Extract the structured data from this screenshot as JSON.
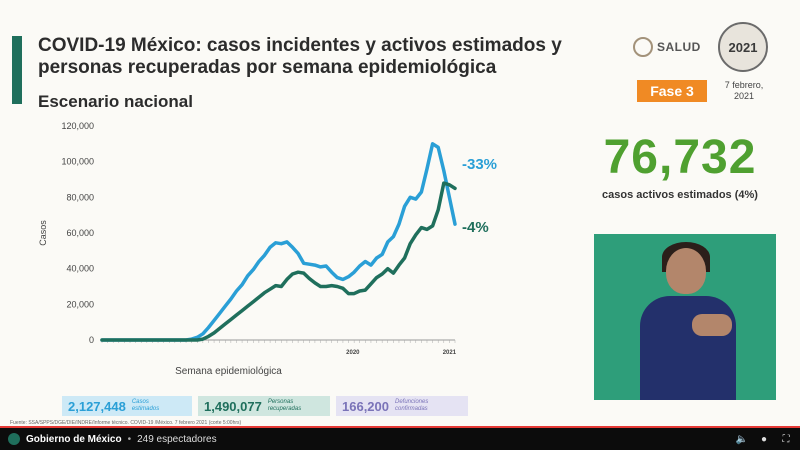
{
  "slide": {
    "title": "COVID-19 México: casos incidentes y activos estimados y personas recuperadas por semana epidemiológica",
    "subtitle": "Escenario nacional",
    "logo_salud": "SALUD",
    "logo_year": "2021",
    "fase": "Fase 3",
    "fecha": "7 febrero, 2021",
    "big_number": "76,732",
    "big_caption": "casos activos estimados (4%)",
    "pct_blue": "-33%",
    "pct_green": "-4%",
    "summary": [
      {
        "value": "2,127,448",
        "label": "Casos estimados"
      },
      {
        "value": "1,490,077",
        "label": "Personas recuperadas"
      },
      {
        "value": "166,200",
        "label": "Defunciones confirmadas"
      }
    ],
    "source": "Fuente: SSA/SPPS/DGE/DIE/INDRE/Informe técnico. COVID-19 /México. 7 febrero 2021 (corte 5:00hrs)"
  },
  "player": {
    "channel": "Gobierno de México",
    "separator": "•",
    "viewers": "249 espectadores",
    "icons": [
      "volume-icon",
      "location-icon",
      "fullscreen-icon"
    ],
    "progress": 1.0
  },
  "chart_data": {
    "type": "line",
    "xlabel": "Semana epidemiológica",
    "ylabel": "Casos",
    "x_ticks": [
      "2020",
      "2021"
    ],
    "y_ticks": [
      "0",
      "20,000",
      "40,000",
      "60,000",
      "80,000",
      "100,000",
      "120,000"
    ],
    "ylim": [
      0,
      120000
    ],
    "series": [
      {
        "color": "#2a9fd6",
        "values": [
          0,
          0,
          0,
          0,
          0,
          0,
          0,
          0,
          0,
          0,
          0,
          0,
          0,
          0,
          0,
          0,
          500,
          1500,
          3500,
          7000,
          11000,
          15000,
          19000,
          23000,
          27500,
          31000,
          36000,
          39500,
          44000,
          47500,
          52000,
          54500,
          54000,
          55000,
          52000,
          48500,
          43000,
          42500,
          42000,
          41000,
          41500,
          38000,
          35000,
          34000,
          35500,
          38000,
          41500,
          44000,
          42000,
          46000,
          48000,
          55000,
          58000,
          65000,
          75000,
          80000,
          79000,
          83000,
          96000,
          110000,
          108000,
          95000,
          80000,
          65000
        ]
      },
      {
        "color": "#1f6f5c",
        "values": [
          0,
          0,
          0,
          0,
          0,
          0,
          0,
          0,
          0,
          0,
          0,
          0,
          0,
          0,
          0,
          0,
          0,
          0,
          500,
          2000,
          4000,
          6500,
          9000,
          11500,
          14000,
          16500,
          19000,
          21500,
          24000,
          26500,
          28500,
          30500,
          30000,
          34000,
          37000,
          38000,
          37500,
          34500,
          32000,
          30000,
          30000,
          30500,
          30000,
          29000,
          26000,
          26000,
          27500,
          28000,
          31500,
          35000,
          37000,
          40000,
          37500,
          42000,
          46000,
          54000,
          59000,
          63000,
          62000,
          64000,
          73000,
          88000,
          87000,
          85000
        ]
      }
    ],
    "grid": false,
    "legend": "none"
  }
}
